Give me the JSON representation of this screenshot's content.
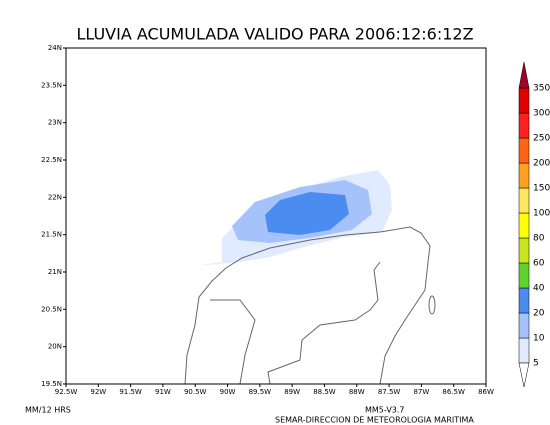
{
  "title": "LLUVIA ACUMULADA VALIDO PARA 2006:12:6:12Z",
  "lon_labels": [
    "92.5W",
    "92W",
    "91.5W",
    "91W",
    "90.5W",
    "90W",
    "89.5W",
    "89W",
    "88.5W",
    "88W",
    "87.5W",
    "87W",
    "86.5W",
    "86W"
  ],
  "lat_labels": [
    "24N",
    "23.5N",
    "23N",
    "22.5N",
    "22N",
    "21.5N",
    "21N",
    "20.5N",
    "20N",
    "19.5N"
  ],
  "colorbar": {
    "levels": [
      5,
      10,
      20,
      40,
      60,
      80,
      100,
      150,
      200,
      250,
      300,
      350
    ],
    "colors": [
      "#ffffff",
      "#e1ebff",
      "#a5c3fa",
      "#4b8cf0",
      "#5fd32b",
      "#c8e61e",
      "#ffff00",
      "#ffe85f",
      "#ffa020",
      "#ff6414",
      "#ff2020",
      "#e00000",
      "#a0002a"
    ]
  },
  "footer": {
    "units": "MM/12 HRS",
    "model": "MM5-V3.7",
    "source": "SEMAR-DIRECCION DE METEOROLOGIA MARITIMA"
  }
}
